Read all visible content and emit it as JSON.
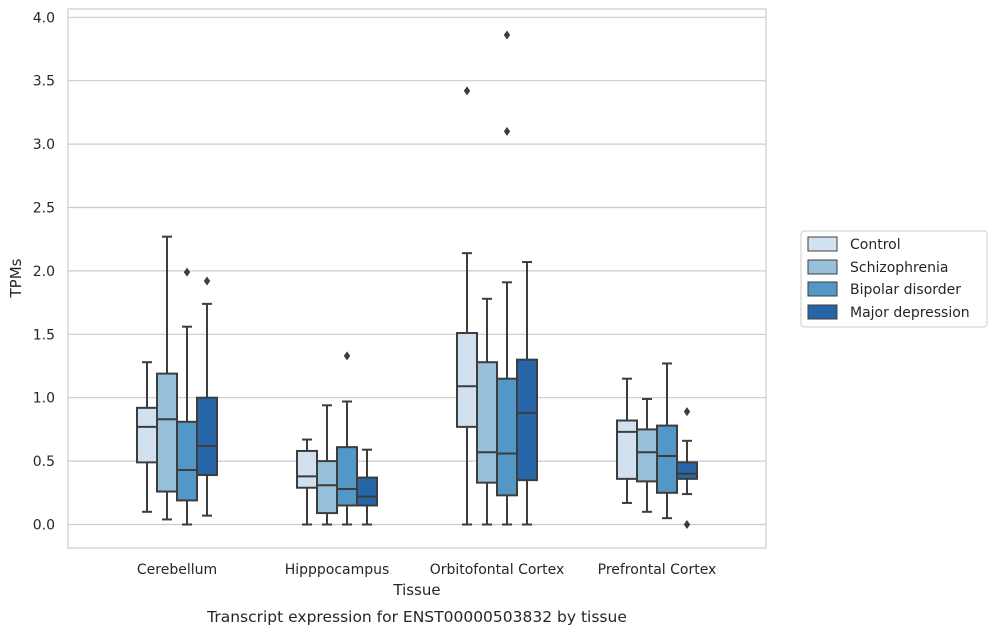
{
  "chart_data": {
    "type": "boxplot",
    "xlabel": "Tissue",
    "ylabel": "TPMs",
    "caption": "Transcript expression for ENST00000503832 by tissue",
    "ylim": [
      -0.18,
      4.05
    ],
    "yticks": [
      0.0,
      0.5,
      1.0,
      1.5,
      2.0,
      2.5,
      3.0,
      3.5,
      4.0
    ],
    "ytick_labels": [
      "0.0",
      "0.5",
      "1.0",
      "1.5",
      "2.0",
      "2.5",
      "3.0",
      "3.5",
      "4.0"
    ],
    "grid": "horizontal",
    "legend_position": "right",
    "categories": [
      "Cerebellum",
      "Hipppocampus",
      "Orbitofontal Cortex",
      "Prefrontal Cortex"
    ],
    "series": [
      {
        "name": "Control",
        "color": "#d2e1f0",
        "boxes": [
          {
            "whislo": 0.1,
            "q1": 0.49,
            "med": 0.77,
            "q3": 0.92,
            "whishi": 1.28,
            "fliers": []
          },
          {
            "whislo": 0.0,
            "q1": 0.29,
            "med": 0.38,
            "q3": 0.58,
            "whishi": 0.67,
            "fliers": []
          },
          {
            "whislo": 0.0,
            "q1": 0.77,
            "med": 1.09,
            "q3": 1.51,
            "whishi": 2.14,
            "fliers": [
              3.42
            ]
          },
          {
            "whislo": 0.17,
            "q1": 0.36,
            "med": 0.73,
            "q3": 0.82,
            "whishi": 1.15,
            "fliers": []
          }
        ]
      },
      {
        "name": "Schizophrenia",
        "color": "#97c1da",
        "boxes": [
          {
            "whislo": 0.04,
            "q1": 0.26,
            "med": 0.83,
            "q3": 1.19,
            "whishi": 2.27,
            "fliers": []
          },
          {
            "whislo": 0.0,
            "q1": 0.09,
            "med": 0.31,
            "q3": 0.5,
            "whishi": 0.94,
            "fliers": []
          },
          {
            "whislo": 0.0,
            "q1": 0.33,
            "med": 0.57,
            "q3": 1.28,
            "whishi": 1.78,
            "fliers": []
          },
          {
            "whislo": 0.1,
            "q1": 0.34,
            "med": 0.57,
            "q3": 0.75,
            "whishi": 0.99,
            "fliers": []
          }
        ]
      },
      {
        "name": "Bipolar disorder",
        "color": "#5297c6",
        "boxes": [
          {
            "whislo": 0.0,
            "q1": 0.19,
            "med": 0.43,
            "q3": 0.81,
            "whishi": 1.56,
            "fliers": [
              1.99
            ]
          },
          {
            "whislo": 0.0,
            "q1": 0.15,
            "med": 0.28,
            "q3": 0.61,
            "whishi": 0.97,
            "fliers": [
              1.33
            ]
          },
          {
            "whislo": 0.0,
            "q1": 0.23,
            "med": 0.56,
            "q3": 1.15,
            "whishi": 1.91,
            "fliers": [
              3.1,
              3.86
            ]
          },
          {
            "whislo": 0.05,
            "q1": 0.25,
            "med": 0.54,
            "q3": 0.78,
            "whishi": 1.27,
            "fliers": []
          }
        ]
      },
      {
        "name": "Major depression",
        "color": "#2565a8",
        "boxes": [
          {
            "whislo": 0.07,
            "q1": 0.39,
            "med": 0.62,
            "q3": 1.0,
            "whishi": 1.74,
            "fliers": [
              1.92
            ]
          },
          {
            "whislo": 0.0,
            "q1": 0.15,
            "med": 0.22,
            "q3": 0.37,
            "whishi": 0.59,
            "fliers": []
          },
          {
            "whislo": 0.0,
            "q1": 0.35,
            "med": 0.88,
            "q3": 1.3,
            "whishi": 2.07,
            "fliers": []
          },
          {
            "whislo": 0.24,
            "q1": 0.36,
            "med": 0.4,
            "q3": 0.49,
            "whishi": 0.66,
            "fliers": [
              0.89,
              0.0
            ]
          }
        ]
      }
    ]
  }
}
